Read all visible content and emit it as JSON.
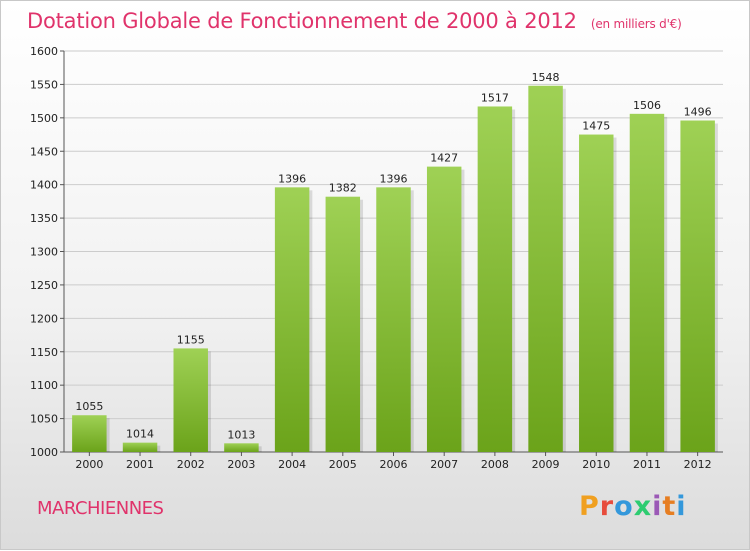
{
  "header": {
    "title": "Dotation Globale de Fonctionnement de 2000 à 2012",
    "subtitle": "(en milliers d'€)"
  },
  "footer": {
    "city": "MARCHIENNES",
    "logo": "Proxiti"
  },
  "colors": {
    "accent": "#e0336b",
    "bar_top": "#9fd155",
    "bar_bottom": "#6ba31a",
    "grid": "#cccccc"
  },
  "chart_data": {
    "type": "bar",
    "title": "Dotation Globale de Fonctionnement de 2000 à 2012",
    "subtitle": "(en milliers d'€)",
    "xlabel": "",
    "ylabel": "",
    "categories": [
      "2000",
      "2001",
      "2002",
      "2003",
      "2004",
      "2005",
      "2006",
      "2007",
      "2008",
      "2009",
      "2010",
      "2011",
      "2012"
    ],
    "values": [
      1055,
      1014,
      1155,
      1013,
      1396,
      1382,
      1396,
      1427,
      1517,
      1548,
      1475,
      1506,
      1496
    ],
    "ylim": [
      1000,
      1600
    ],
    "yticks": [
      1000,
      1050,
      1100,
      1150,
      1200,
      1250,
      1300,
      1350,
      1400,
      1450,
      1500,
      1550,
      1600
    ],
    "grid": true,
    "legend": "none"
  }
}
